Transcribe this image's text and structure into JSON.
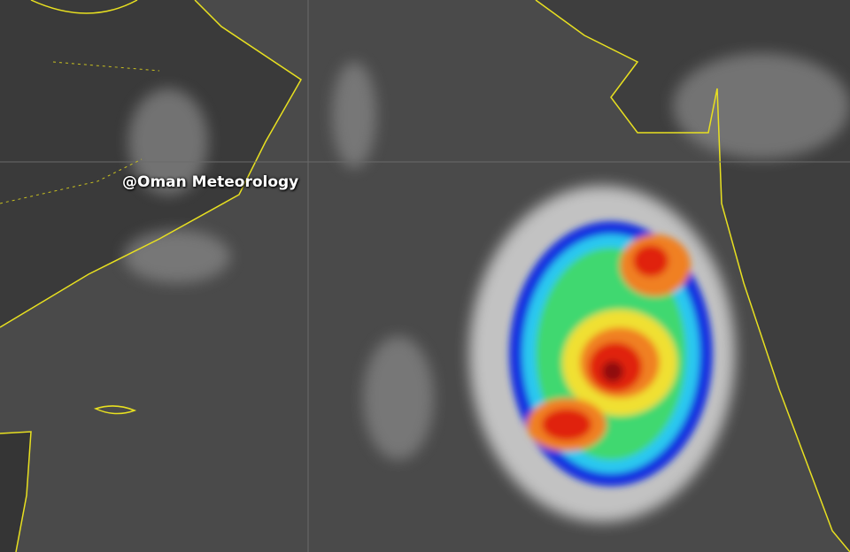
{
  "watermark": "@Oman Meteorology"
}
